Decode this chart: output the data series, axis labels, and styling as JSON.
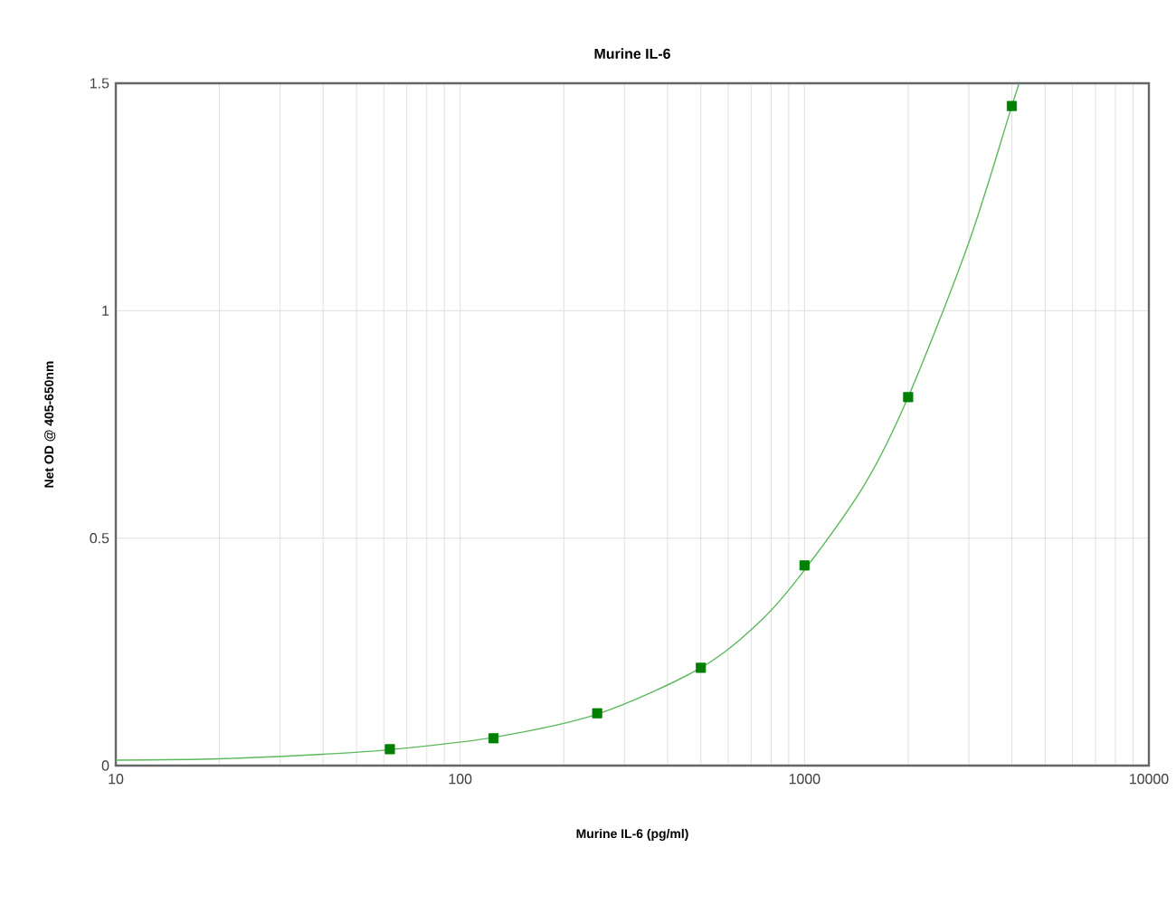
{
  "chart_data": {
    "type": "scatter",
    "title": "Murine IL-6",
    "xlabel": "Murine IL-6 (pg/ml)",
    "ylabel": "Net OD @ 405-650nm",
    "log": "x",
    "grid": true,
    "xlim": [
      10,
      10000
    ],
    "ylim": [
      0,
      1.5
    ],
    "xticks": [
      10,
      100,
      1000,
      10000
    ],
    "yticks": [
      0,
      0.5,
      1,
      1.5
    ],
    "series": [
      {
        "marker": "square",
        "color": "#008000",
        "x": [
          62.5,
          125,
          250,
          500,
          1000,
          2000,
          4000
        ],
        "values": [
          0.036,
          0.06,
          0.115,
          0.215,
          0.44,
          0.81,
          1.45
        ]
      },
      {
        "type": "line",
        "marker": "none",
        "line_style": "solid",
        "color": "#5cb85c",
        "x": [
          10,
          20,
          40,
          62.5,
          125,
          250,
          500,
          750,
          1000,
          1500,
          2000,
          3000,
          4000,
          4200
        ],
        "values": [
          0.012,
          0.015,
          0.025,
          0.035,
          0.062,
          0.113,
          0.215,
          0.32,
          0.43,
          0.62,
          0.81,
          1.15,
          1.45,
          1.5
        ]
      }
    ]
  }
}
